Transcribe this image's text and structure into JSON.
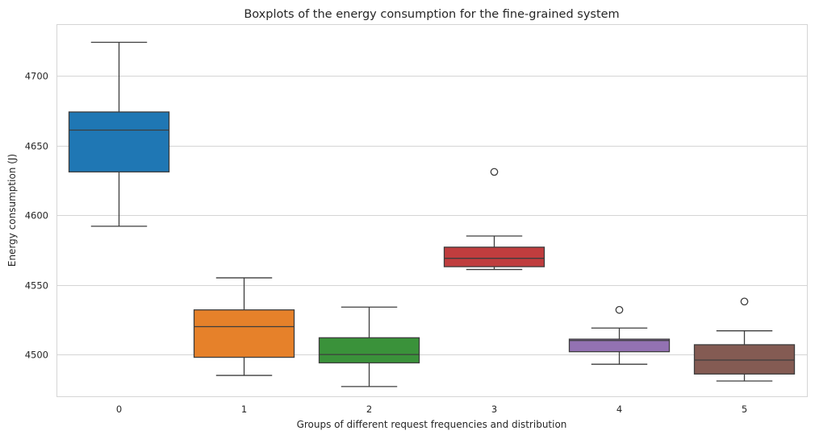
{
  "chart_data": {
    "type": "boxplot",
    "title": "Boxplots of the energy consumption for the fine-grained system",
    "xlabel": "Groups of different request frequencies and distribution",
    "ylabel": "Energy consumption (J)",
    "ylim": [
      4470,
      4737
    ],
    "yticks": [
      4500,
      4550,
      4600,
      4650,
      4700
    ],
    "grid": true,
    "categories": [
      "0",
      "1",
      "2",
      "3",
      "4",
      "5"
    ],
    "boxes": [
      {
        "category": "0",
        "whisker_low": 4592,
        "q1": 4631,
        "median": 4661,
        "q3": 4674,
        "whisker_high": 4724,
        "outliers": [],
        "color": "#1f77b4"
      },
      {
        "category": "1",
        "whisker_low": 4485,
        "q1": 4498,
        "median": 4520,
        "q3": 4532,
        "whisker_high": 4555,
        "outliers": [],
        "color": "#e6812a"
      },
      {
        "category": "2",
        "whisker_low": 4477,
        "q1": 4494,
        "median": 4500,
        "q3": 4512,
        "whisker_high": 4534,
        "outliers": [],
        "color": "#3a923a"
      },
      {
        "category": "3",
        "whisker_low": 4561,
        "q1": 4563,
        "median": 4569,
        "q3": 4577,
        "whisker_high": 4585,
        "outliers": [
          4631
        ],
        "color": "#c03d3e"
      },
      {
        "category": "4",
        "whisker_low": 4493,
        "q1": 4502,
        "median": 4510,
        "q3": 4511,
        "whisker_high": 4519,
        "outliers": [
          4532
        ],
        "color": "#9372b2"
      },
      {
        "category": "5",
        "whisker_low": 4481,
        "q1": 4486,
        "median": 4496,
        "q3": 4507,
        "whisker_high": 4517,
        "outliers": [
          4538
        ],
        "color": "#845b53"
      }
    ]
  }
}
